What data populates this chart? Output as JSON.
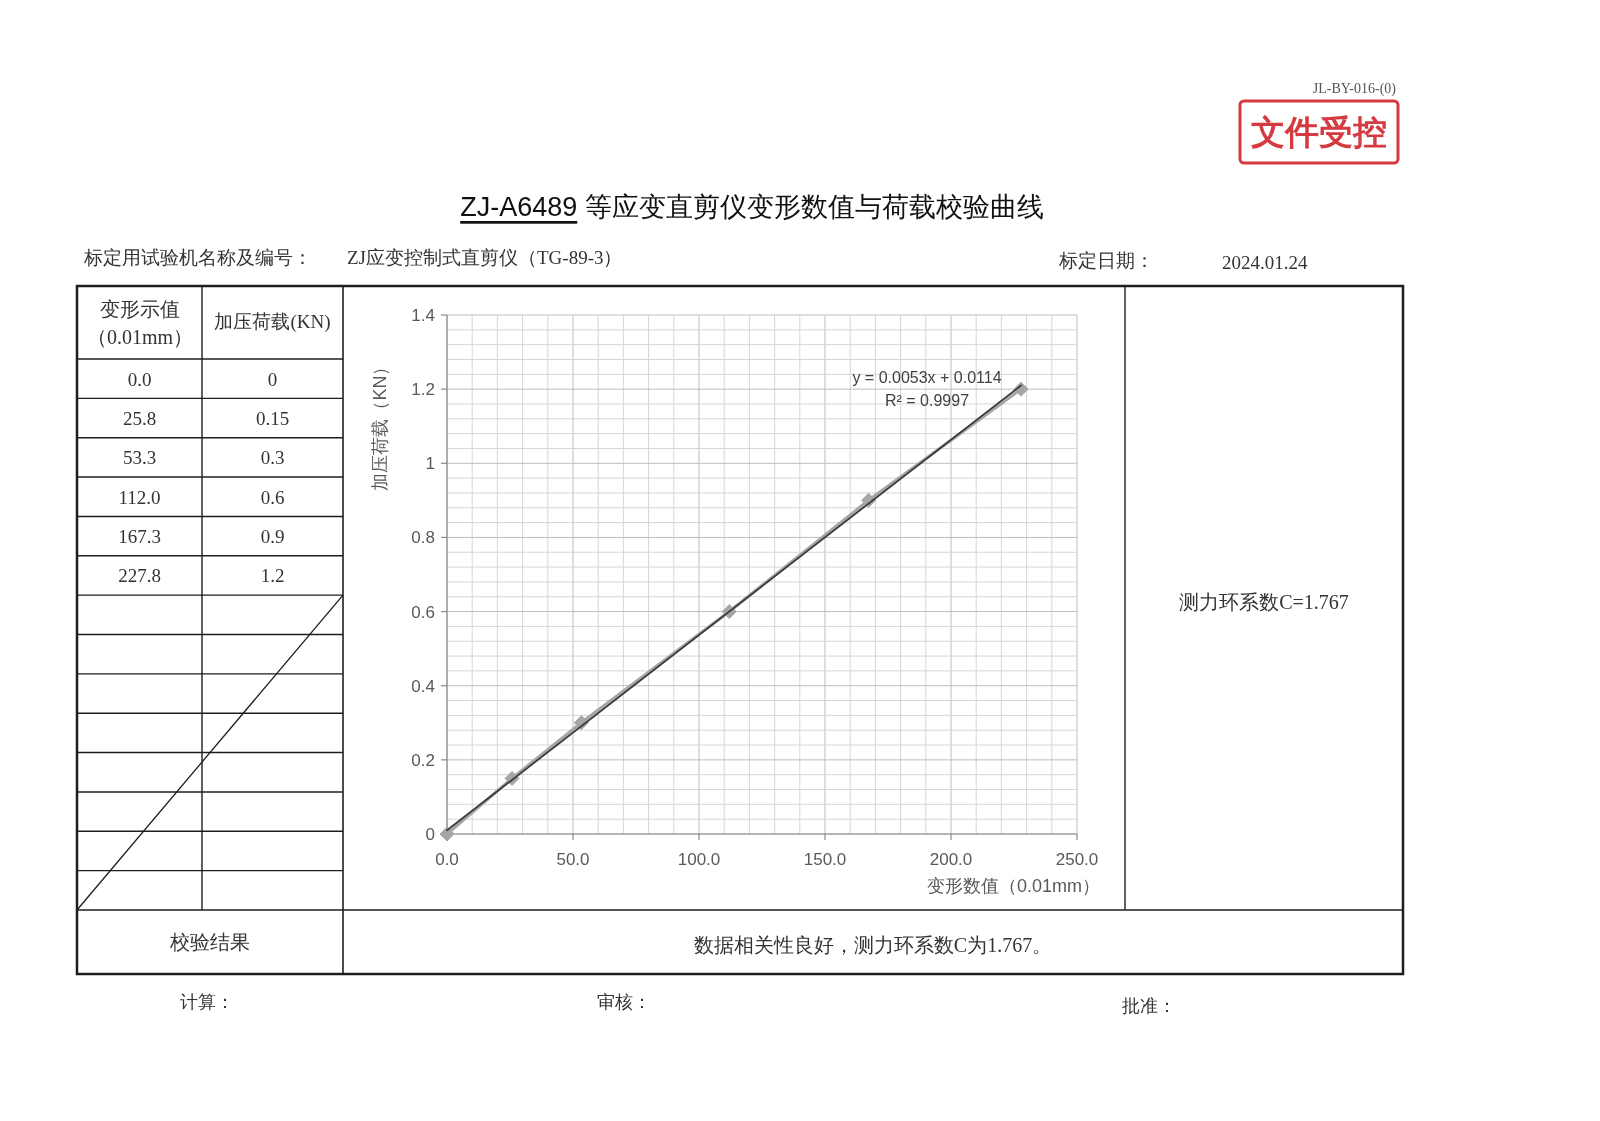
{
  "chart_data": [
    {
      "type": "other",
      "annotations": [
        "标定用试验机名称及编号：",
        "ZJ应变控制式直剪仪（TG-89-3）",
        "标定日期：",
        "2024.01.24",
        "变形示值（0.01mm）",
        "加压荷载(KN)",
        "0.0",
        "0",
        "25.8",
        "0.15",
        "53.3",
        "0.3",
        "112.0",
        "0.6",
        "167.3",
        "0.9",
        "227.8",
        "1.2",
        "测力环系数C=1.767",
        "校验结果",
        "数据相关性良好，测力环系数C为1.767。",
        "计算：",
        "审核：",
        "批准：",
        "文件受控",
        "JL-BY-016-(0)"
      ]
    },
    {
      "type": "line",
      "title": "ZJ-A6489 等应变直剪仪变形数值与荷载校验曲线",
      "xlabel": "变形数值（0.01mm）",
      "ylabel": "加压荷载（KN）",
      "series": [
        {
          "color": "#a6a6a6",
          "marker": "diamond",
          "x": [
            0,
            25.8,
            53.3,
            112.0,
            167.3,
            227.8
          ],
          "values": [
            0,
            0.15,
            0.3,
            0.6,
            0.9,
            1.2
          ]
        },
        {
          "type": "line",
          "color": "#3c3c3c",
          "x": [
            0,
            227.8
          ],
          "values": [
            0.01,
            1.21
          ]
        }
      ],
      "xlim": [
        0,
        250
      ],
      "xticks": [
        {
          "value": 0,
          "label": "0.0"
        },
        {
          "value": 50,
          "label": "50.0"
        },
        {
          "value": 100,
          "label": "100.0"
        },
        {
          "value": 150,
          "label": "150.0"
        },
        {
          "value": 200,
          "label": "200.0"
        },
        {
          "value": 250,
          "label": "250.0"
        }
      ],
      "ylim": [
        0,
        1.4
      ],
      "yticks": [
        0,
        0.2,
        0.4,
        0.6,
        0.8,
        1,
        1.2,
        1.4
      ],
      "grid": true,
      "annotations": [
        "y = 0.0053x + 0.0114",
        "R² = 0.9997"
      ]
    }
  ]
}
